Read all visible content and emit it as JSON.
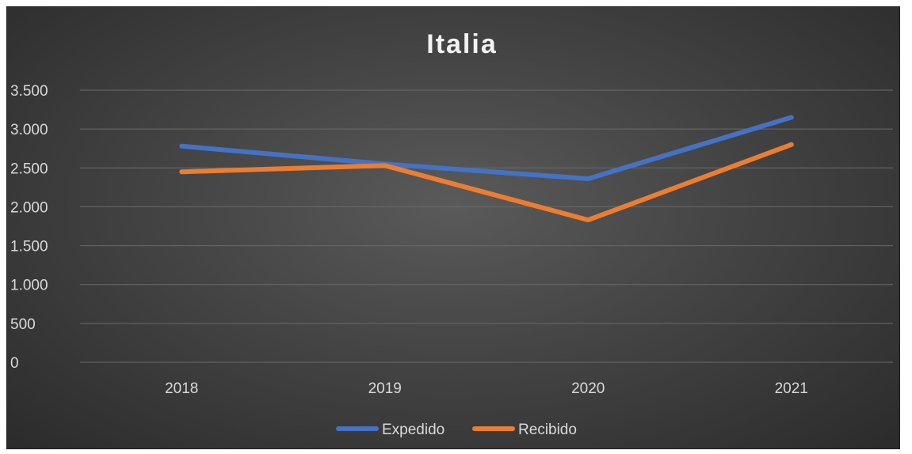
{
  "chart_data": {
    "type": "line",
    "title": "Italia",
    "xlabel": "",
    "ylabel": "",
    "categories": [
      "2018",
      "2019",
      "2020",
      "2021"
    ],
    "ylim": [
      0,
      3500
    ],
    "yticks": [
      0,
      500,
      1000,
      1500,
      2000,
      2500,
      3000,
      3500
    ],
    "ytick_labels": [
      "0",
      "500",
      "1.000",
      "1.500",
      "2.000",
      "2.500",
      "3.000",
      "3.500"
    ],
    "grid": true,
    "legend_position": "bottom",
    "series": [
      {
        "name": "Expedido",
        "color": "#4472c4",
        "values": [
          2780,
          2550,
          2360,
          3150
        ]
      },
      {
        "name": "Recibido",
        "color": "#ed7d31",
        "values": [
          2450,
          2530,
          1830,
          2800
        ]
      }
    ]
  }
}
